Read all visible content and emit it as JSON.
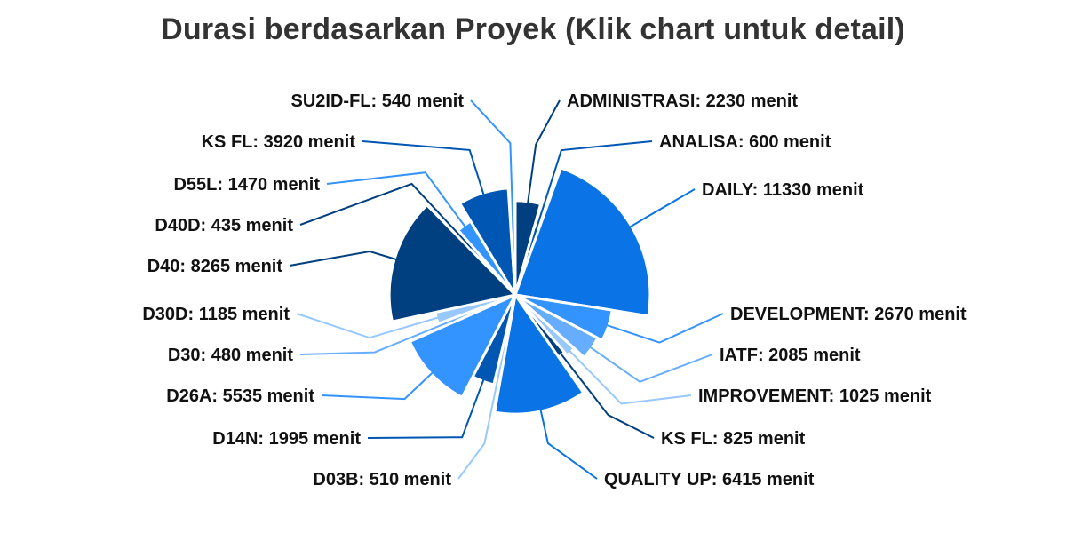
{
  "chart_data": {
    "type": "pie",
    "title": "Durasi berdasarkan Proyek (Klik chart untuk detail)",
    "unit": "menit",
    "slices": [
      {
        "label": "ADMINISTRASI",
        "value": 2230,
        "color": "#003f80"
      },
      {
        "label": "ANALISA",
        "value": 600,
        "color": "#0057b3"
      },
      {
        "label": "DAILY",
        "value": 11330,
        "color": "#0a74e6"
      },
      {
        "label": "DEVELOPMENT",
        "value": 2670,
        "color": "#3393ff"
      },
      {
        "label": "IATF",
        "value": 2085,
        "color": "#66adff"
      },
      {
        "label": "IMPROVEMENT",
        "value": 1025,
        "color": "#99c8ff"
      },
      {
        "label": "KS FL",
        "value": 825,
        "color": "#003f80"
      },
      {
        "label": "QUALITY UP",
        "value": 6415,
        "color": "#0a74e6"
      },
      {
        "label": "D03B",
        "value": 510,
        "color": "#99c8ff"
      },
      {
        "label": "D14N",
        "value": 1995,
        "color": "#0057b3"
      },
      {
        "label": "D26A",
        "value": 5535,
        "color": "#3393ff"
      },
      {
        "label": "D30",
        "value": 480,
        "color": "#66adff"
      },
      {
        "label": "D30D",
        "value": 1185,
        "color": "#99c8ff"
      },
      {
        "label": "D40",
        "value": 8265,
        "color": "#003f80"
      },
      {
        "label": "D40D",
        "value": 435,
        "color": "#003f80"
      },
      {
        "label": "D55L",
        "value": 1470,
        "color": "#3393ff"
      },
      {
        "label": "KS FL",
        "value": 3920,
        "color": "#0057b3"
      },
      {
        "label": "SU2ID-FL",
        "value": 540,
        "color": "#3393ff"
      }
    ],
    "legend": "none"
  }
}
